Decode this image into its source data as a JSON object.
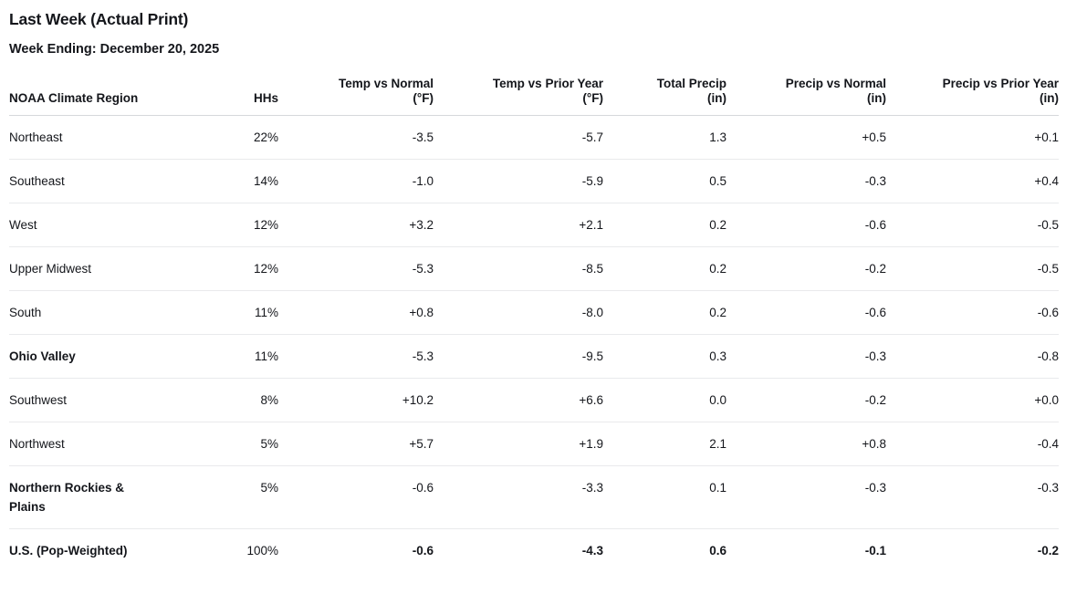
{
  "page": {
    "title": "Last Week (Actual Print)",
    "subtitle": "Week Ending: December 20, 2025"
  },
  "table": {
    "columns": [
      {
        "id": "region",
        "label": "NOAA Climate Region",
        "sub": "",
        "align": "left"
      },
      {
        "id": "hhs",
        "label": "HHs",
        "sub": "",
        "align": "right"
      },
      {
        "id": "temp-vs-normal",
        "label": "Temp vs Normal",
        "sub": "(°F)",
        "align": "right"
      },
      {
        "id": "temp-vs-prior-year",
        "label": "Temp vs Prior Year",
        "sub": "(°F)",
        "align": "right"
      },
      {
        "id": "total-precip",
        "label": "Total Precip",
        "sub": "(in)",
        "align": "right"
      },
      {
        "id": "precip-vs-normal",
        "label": "Precip vs Normal",
        "sub": "(in)",
        "align": "right"
      },
      {
        "id": "precip-vs-prior-year",
        "label": "Precip vs Prior Year",
        "sub": "(in)",
        "align": "right"
      }
    ],
    "rows": [
      {
        "cells": [
          "Northeast",
          "22%",
          "-3.5",
          "-5.7",
          "1.3",
          "+0.5",
          "+0.1"
        ],
        "bold_label": false,
        "bold_values": false
      },
      {
        "cells": [
          "Southeast",
          "14%",
          "-1.0",
          "-5.9",
          "0.5",
          "-0.3",
          "+0.4"
        ],
        "bold_label": false,
        "bold_values": false
      },
      {
        "cells": [
          "West",
          "12%",
          "+3.2",
          "+2.1",
          "0.2",
          "-0.6",
          "-0.5"
        ],
        "bold_label": false,
        "bold_values": false
      },
      {
        "cells": [
          "Upper Midwest",
          "12%",
          "-5.3",
          "-8.5",
          "0.2",
          "-0.2",
          "-0.5"
        ],
        "bold_label": false,
        "bold_values": false
      },
      {
        "cells": [
          "South",
          "11%",
          "+0.8",
          "-8.0",
          "0.2",
          "-0.6",
          "-0.6"
        ],
        "bold_label": false,
        "bold_values": false
      },
      {
        "cells": [
          "Ohio Valley",
          "11%",
          "-5.3",
          "-9.5",
          "0.3",
          "-0.3",
          "-0.8"
        ],
        "bold_label": true,
        "bold_values": false
      },
      {
        "cells": [
          "Southwest",
          "8%",
          "+10.2",
          "+6.6",
          "0.0",
          "-0.2",
          "+0.0"
        ],
        "bold_label": false,
        "bold_values": false
      },
      {
        "cells": [
          "Northwest",
          "5%",
          "+5.7",
          "+1.9",
          "2.1",
          "+0.8",
          "-0.4"
        ],
        "bold_label": false,
        "bold_values": false
      },
      {
        "cells": [
          "Northern Rockies & Plains",
          "5%",
          "-0.6",
          "-3.3",
          "0.1",
          "-0.3",
          "-0.3"
        ],
        "bold_label": true,
        "bold_values": false
      },
      {
        "cells": [
          "U.S. (Pop-Weighted)",
          "100%",
          "-0.6",
          "-4.3",
          "0.6",
          "-0.1",
          "-0.2"
        ],
        "bold_label": true,
        "bold_values": true
      }
    ]
  },
  "colors": {
    "text": "#14161b",
    "header_border": "#d6d8db",
    "row_border": "#e9eaec",
    "background": "#ffffff"
  }
}
